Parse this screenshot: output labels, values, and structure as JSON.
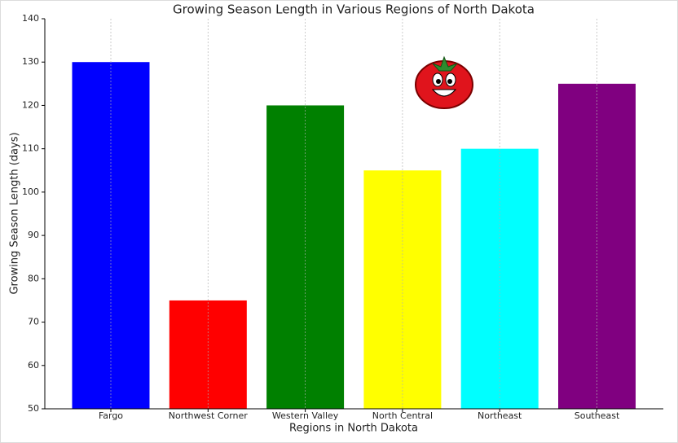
{
  "chart_data": {
    "type": "bar",
    "title": "Growing Season Length in Various Regions of North Dakota",
    "x_label": "Regions in North Dakota",
    "y_label": "Growing Season Length (days)",
    "categories": [
      "Fargo",
      "Northwest Corner",
      "Western Valley",
      "North Central",
      "Northeast",
      "Southeast"
    ],
    "values": [
      130,
      75,
      120,
      105,
      110,
      125
    ],
    "colors": [
      "#0000ff",
      "#ff0000",
      "#008000",
      "#ffff00",
      "#00ffff",
      "#800080"
    ],
    "ylim": [
      50,
      140
    ],
    "yticks": [
      50,
      60,
      70,
      80,
      90,
      100,
      110,
      120,
      130,
      140
    ],
    "grid": "x"
  }
}
